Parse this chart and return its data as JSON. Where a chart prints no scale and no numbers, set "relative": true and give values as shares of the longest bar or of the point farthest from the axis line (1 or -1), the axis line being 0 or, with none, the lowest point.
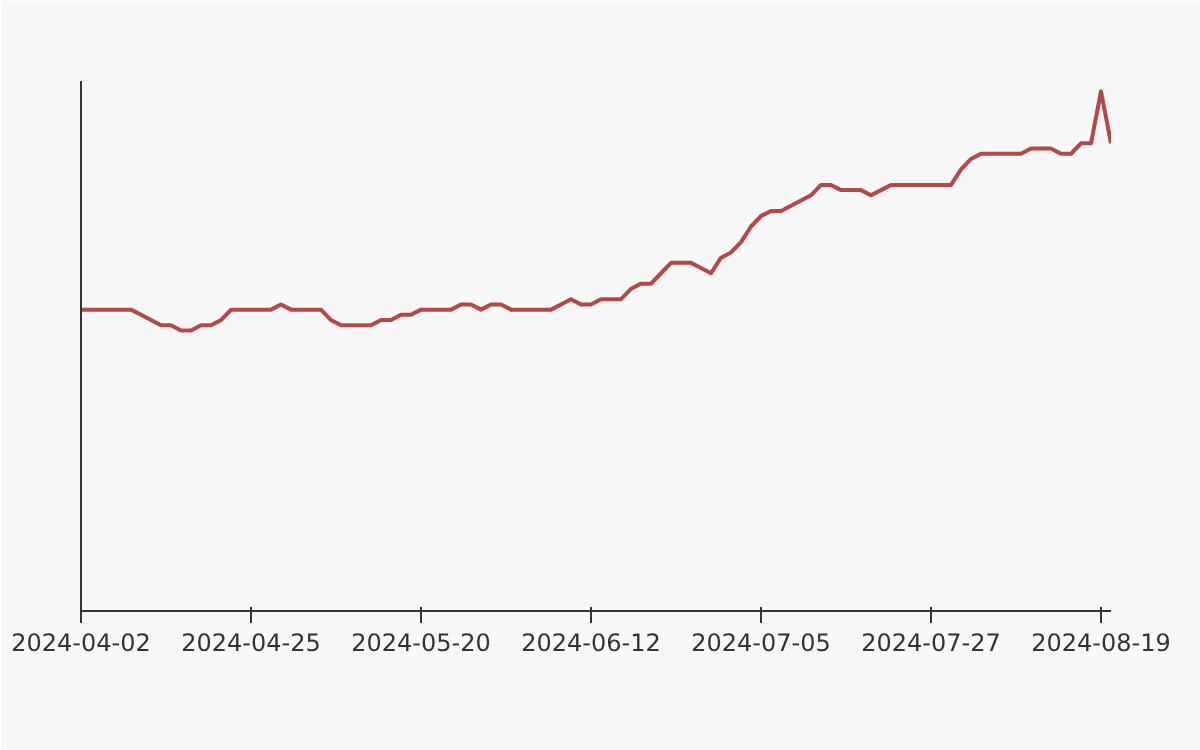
{
  "chart_data": {
    "type": "line",
    "relative": true,
    "grid": false,
    "categories": [
      "2024-04-02",
      null,
      null,
      null,
      null,
      null,
      null,
      null,
      null,
      null,
      null,
      null,
      null,
      null,
      null,
      null,
      null,
      "2024-04-25",
      null,
      null,
      null,
      null,
      null,
      null,
      null,
      null,
      null,
      null,
      null,
      null,
      null,
      null,
      null,
      null,
      "2024-05-20",
      null,
      null,
      null,
      null,
      null,
      null,
      null,
      null,
      null,
      null,
      null,
      null,
      null,
      null,
      null,
      null,
      "2024-06-12",
      null,
      null,
      null,
      null,
      null,
      null,
      null,
      null,
      null,
      null,
      null,
      null,
      null,
      null,
      null,
      null,
      "2024-07-05",
      null,
      null,
      null,
      null,
      null,
      null,
      null,
      null,
      null,
      null,
      null,
      null,
      null,
      null,
      null,
      null,
      "2024-07-27",
      null,
      null,
      null,
      null,
      null,
      null,
      null,
      null,
      null,
      null,
      null,
      null,
      null,
      null,
      null,
      null,
      "2024-08-19",
      null
    ],
    "series": [
      {
        "color": "#b5474a",
        "values": [
          0.58,
          0.58,
          0.58,
          0.58,
          0.58,
          0.58,
          0.57,
          0.56,
          0.55,
          0.55,
          0.54,
          0.54,
          0.55,
          0.55,
          0.56,
          0.58,
          0.58,
          0.58,
          0.58,
          0.58,
          0.59,
          0.58,
          0.58,
          0.58,
          0.58,
          0.56,
          0.55,
          0.55,
          0.55,
          0.55,
          0.56,
          0.56,
          0.57,
          0.57,
          0.58,
          0.58,
          0.58,
          0.58,
          0.59,
          0.59,
          0.58,
          0.59,
          0.59,
          0.58,
          0.58,
          0.58,
          0.58,
          0.58,
          0.59,
          0.6,
          0.59,
          0.59,
          0.6,
          0.6,
          0.6,
          0.62,
          0.63,
          0.63,
          0.65,
          0.67,
          0.67,
          0.67,
          0.66,
          0.65,
          0.68,
          0.69,
          0.71,
          0.74,
          0.76,
          0.77,
          0.77,
          0.78,
          0.79,
          0.8,
          0.82,
          0.82,
          0.81,
          0.81,
          0.81,
          0.8,
          0.81,
          0.82,
          0.82,
          0.82,
          0.82,
          0.82,
          0.82,
          0.82,
          0.85,
          0.87,
          0.88,
          0.88,
          0.88,
          0.88,
          0.88,
          0.89,
          0.89,
          0.89,
          0.88,
          0.88,
          0.9,
          0.9,
          1,
          0.9
        ]
      }
    ]
  }
}
